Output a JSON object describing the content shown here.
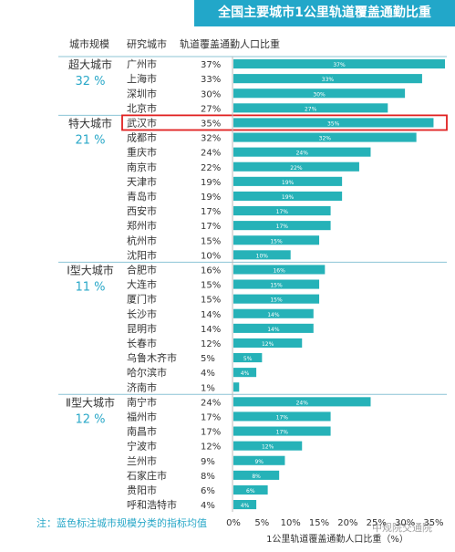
{
  "title": "全国主要城市1公里轨道覆盖通勤比重",
  "header": {
    "col1": "城市规模",
    "col2": "研究城市",
    "col3": "轨道覆盖通勤人口比重"
  },
  "note": "注：蓝色标注城市规模分类的指标均值",
  "watermark": "中规院交通院",
  "colors": {
    "bar": "#26b2b8",
    "accent": "#2aa8c8",
    "title_bg": "#22a7c9",
    "highlight": "#e02020",
    "divider": "#8cc4d6"
  },
  "chart_data": {
    "type": "bar",
    "orientation": "horizontal",
    "xlabel": "1公里轨道覆盖通勤人口比重（%）",
    "xlim": [
      0,
      37
    ],
    "xticks": [
      "0%",
      "5%",
      "10%",
      "15%",
      "20%",
      "25%",
      "30%",
      "35%"
    ],
    "xtick_values": [
      0,
      5,
      10,
      15,
      20,
      25,
      30,
      35
    ],
    "highlighted": "武汉市",
    "groups": [
      {
        "name": "超大城市",
        "mean": "32 %",
        "cities": [
          {
            "city": "广州市",
            "value": 37,
            "label": "37%"
          },
          {
            "city": "上海市",
            "value": 33,
            "label": "33%"
          },
          {
            "city": "深圳市",
            "value": 30,
            "label": "30%"
          },
          {
            "city": "北京市",
            "value": 27,
            "label": "27%"
          }
        ]
      },
      {
        "name": "特大城市",
        "mean": "21 %",
        "cities": [
          {
            "city": "武汉市",
            "value": 35,
            "label": "35%"
          },
          {
            "city": "成都市",
            "value": 32,
            "label": "32%"
          },
          {
            "city": "重庆市",
            "value": 24,
            "label": "24%"
          },
          {
            "city": "南京市",
            "value": 22,
            "label": "22%"
          },
          {
            "city": "天津市",
            "value": 19,
            "label": "19%"
          },
          {
            "city": "青岛市",
            "value": 19,
            "label": "19%"
          },
          {
            "city": "西安市",
            "value": 17,
            "label": "17%"
          },
          {
            "city": "郑州市",
            "value": 17,
            "label": "17%"
          },
          {
            "city": "杭州市",
            "value": 15,
            "label": "15%"
          },
          {
            "city": "沈阳市",
            "value": 10,
            "label": "10%"
          }
        ]
      },
      {
        "name": "Ⅰ型大城市",
        "mean": "11 %",
        "cities": [
          {
            "city": "合肥市",
            "value": 16,
            "label": "16%"
          },
          {
            "city": "大连市",
            "value": 15,
            "label": "15%"
          },
          {
            "city": "厦门市",
            "value": 15,
            "label": "15%"
          },
          {
            "city": "长沙市",
            "value": 14,
            "label": "14%"
          },
          {
            "city": "昆明市",
            "value": 14,
            "label": "14%"
          },
          {
            "city": "长春市",
            "value": 12,
            "label": "12%"
          },
          {
            "city": "乌鲁木齐市",
            "value": 5,
            "label": "5%"
          },
          {
            "city": "哈尔滨市",
            "value": 4,
            "label": "4%"
          },
          {
            "city": "济南市",
            "value": 1,
            "label": "1%"
          }
        ]
      },
      {
        "name": "Ⅱ型大城市",
        "mean": "12 %",
        "cities": [
          {
            "city": "南宁市",
            "value": 24,
            "label": "24%"
          },
          {
            "city": "福州市",
            "value": 17,
            "label": "17%"
          },
          {
            "city": "南昌市",
            "value": 17,
            "label": "17%"
          },
          {
            "city": "宁波市",
            "value": 12,
            "label": "12%"
          },
          {
            "city": "兰州市",
            "value": 9,
            "label": "9%"
          },
          {
            "city": "石家庄市",
            "value": 8,
            "label": "8%"
          },
          {
            "city": "贵阳市",
            "value": 6,
            "label": "6%"
          },
          {
            "city": "呼和浩特市",
            "value": 4,
            "label": "4%"
          }
        ]
      }
    ]
  }
}
